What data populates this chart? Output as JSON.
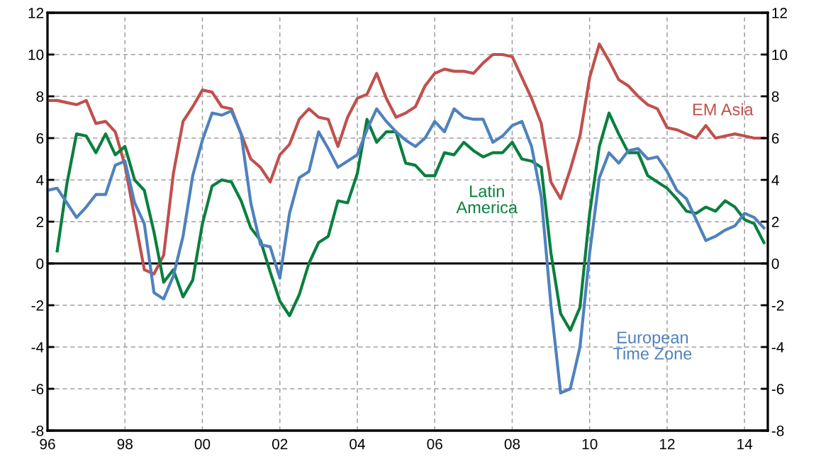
{
  "chart_data": {
    "type": "line",
    "x": [
      1996.0,
      1996.25,
      1996.5,
      1996.75,
      1997.0,
      1997.25,
      1997.5,
      1997.75,
      1998.0,
      1998.25,
      1998.5,
      1998.75,
      1999.0,
      1999.25,
      1999.5,
      1999.75,
      2000.0,
      2000.25,
      2000.5,
      2000.75,
      2001.0,
      2001.25,
      2001.5,
      2001.75,
      2002.0,
      2002.25,
      2002.5,
      2002.75,
      2003.0,
      2003.25,
      2003.5,
      2003.75,
      2004.0,
      2004.25,
      2004.5,
      2004.75,
      2005.0,
      2005.25,
      2005.5,
      2005.75,
      2006.0,
      2006.25,
      2006.5,
      2006.75,
      2007.0,
      2007.25,
      2007.5,
      2007.75,
      2008.0,
      2008.25,
      2008.5,
      2008.75,
      2009.0,
      2009.25,
      2009.5,
      2009.75,
      2010.0,
      2010.25,
      2010.5,
      2010.75,
      2011.0,
      2011.25,
      2011.5,
      2011.75,
      2012.0,
      2012.25,
      2012.5,
      2012.75,
      2013.0,
      2013.25,
      2013.5,
      2013.75,
      2014.0,
      2014.25,
      2014.5
    ],
    "series": [
      {
        "name": "EM Asia",
        "color": "#c0504d",
        "values": [
          7.8,
          7.8,
          7.7,
          7.6,
          7.8,
          6.7,
          6.8,
          6.3,
          4.7,
          2.2,
          -0.3,
          -0.5,
          0.4,
          4.3,
          6.8,
          7.5,
          8.3,
          8.2,
          7.5,
          7.4,
          6.2,
          5.0,
          4.6,
          3.9,
          5.2,
          5.7,
          6.9,
          7.4,
          7.0,
          6.9,
          5.6,
          7.0,
          7.9,
          8.1,
          9.1,
          7.9,
          7.0,
          7.2,
          7.5,
          8.5,
          9.1,
          9.3,
          9.2,
          9.2,
          9.1,
          9.6,
          10.0,
          10.0,
          9.9,
          8.9,
          7.9,
          6.7,
          3.9,
          3.1,
          4.5,
          6.1,
          8.9,
          10.5,
          9.7,
          8.8,
          8.5,
          8.0,
          7.6,
          7.4,
          6.5,
          6.4,
          6.2,
          6.0,
          6.6,
          6.0,
          6.1,
          6.2,
          6.1,
          6.0,
          6.0
        ]
      },
      {
        "name": "Latin\nAmerica",
        "color": "#0a7f3f",
        "values": [
          null,
          0.6,
          3.8,
          6.2,
          6.1,
          5.3,
          6.2,
          5.2,
          5.6,
          4.0,
          3.5,
          1.5,
          -0.9,
          -0.3,
          -1.6,
          -0.8,
          1.9,
          3.7,
          4.0,
          3.9,
          3.0,
          1.7,
          1.1,
          -0.4,
          -1.8,
          -2.5,
          -1.5,
          0.0,
          1.0,
          1.3,
          3.0,
          2.9,
          4.3,
          6.9,
          5.8,
          6.3,
          6.3,
          4.8,
          4.7,
          4.2,
          4.2,
          5.3,
          5.2,
          5.8,
          5.4,
          5.1,
          5.3,
          5.3,
          5.8,
          5.0,
          4.9,
          4.6,
          0.5,
          -2.4,
          -3.2,
          -2.1,
          2.4,
          5.6,
          7.2,
          6.2,
          5.3,
          5.3,
          4.2,
          3.9,
          3.6,
          3.1,
          2.5,
          2.4,
          2.7,
          2.5,
          3.0,
          2.7,
          2.1,
          1.9,
          1.0
        ]
      },
      {
        "name": "European\nTime Zone",
        "color": "#4f81bd",
        "values": [
          3.5,
          3.6,
          2.9,
          2.2,
          2.7,
          3.3,
          3.3,
          4.7,
          4.9,
          2.9,
          1.9,
          -1.4,
          -1.7,
          -0.6,
          1.3,
          4.2,
          5.9,
          7.2,
          7.1,
          7.3,
          6.2,
          2.9,
          0.9,
          0.8,
          -0.7,
          2.4,
          4.1,
          4.4,
          6.3,
          5.5,
          4.6,
          4.9,
          5.2,
          6.4,
          7.4,
          6.8,
          6.3,
          5.9,
          5.6,
          6.0,
          6.8,
          6.3,
          7.4,
          7.0,
          6.9,
          6.9,
          5.8,
          6.1,
          6.6,
          6.8,
          5.6,
          3.2,
          -2.0,
          -6.2,
          -6.0,
          -4.0,
          0.5,
          4.1,
          5.3,
          4.8,
          5.4,
          5.5,
          5.0,
          5.1,
          4.4,
          3.5,
          3.1,
          2.1,
          1.1,
          1.3,
          1.6,
          1.8,
          2.4,
          2.2,
          1.7
        ]
      }
    ],
    "xlim": [
      1996,
      2014.6
    ],
    "xticks": [
      {
        "value": 1996,
        "label": "96"
      },
      {
        "value": 1998,
        "label": "98"
      },
      {
        "value": 2000,
        "label": "00"
      },
      {
        "value": 2002,
        "label": "02"
      },
      {
        "value": 2004,
        "label": "04"
      },
      {
        "value": 2006,
        "label": "06"
      },
      {
        "value": 2008,
        "label": "08"
      },
      {
        "value": 2010,
        "label": "10"
      },
      {
        "value": 2012,
        "label": "12"
      },
      {
        "value": 2014,
        "label": "14"
      }
    ],
    "ylim": [
      -8,
      12
    ],
    "yticks": [
      -8,
      -6,
      -4,
      -2,
      0,
      2,
      4,
      6,
      8,
      10,
      12
    ],
    "y2lim": [
      -8,
      12
    ],
    "y2ticks": [
      -8,
      -6,
      -4,
      -2,
      0,
      2,
      4,
      6,
      8,
      10,
      12
    ],
    "ref_lines": [
      {
        "axis": "y",
        "value": 0,
        "color": "#000000"
      }
    ],
    "grid": true,
    "line_style": "solid",
    "legend": false
  }
}
